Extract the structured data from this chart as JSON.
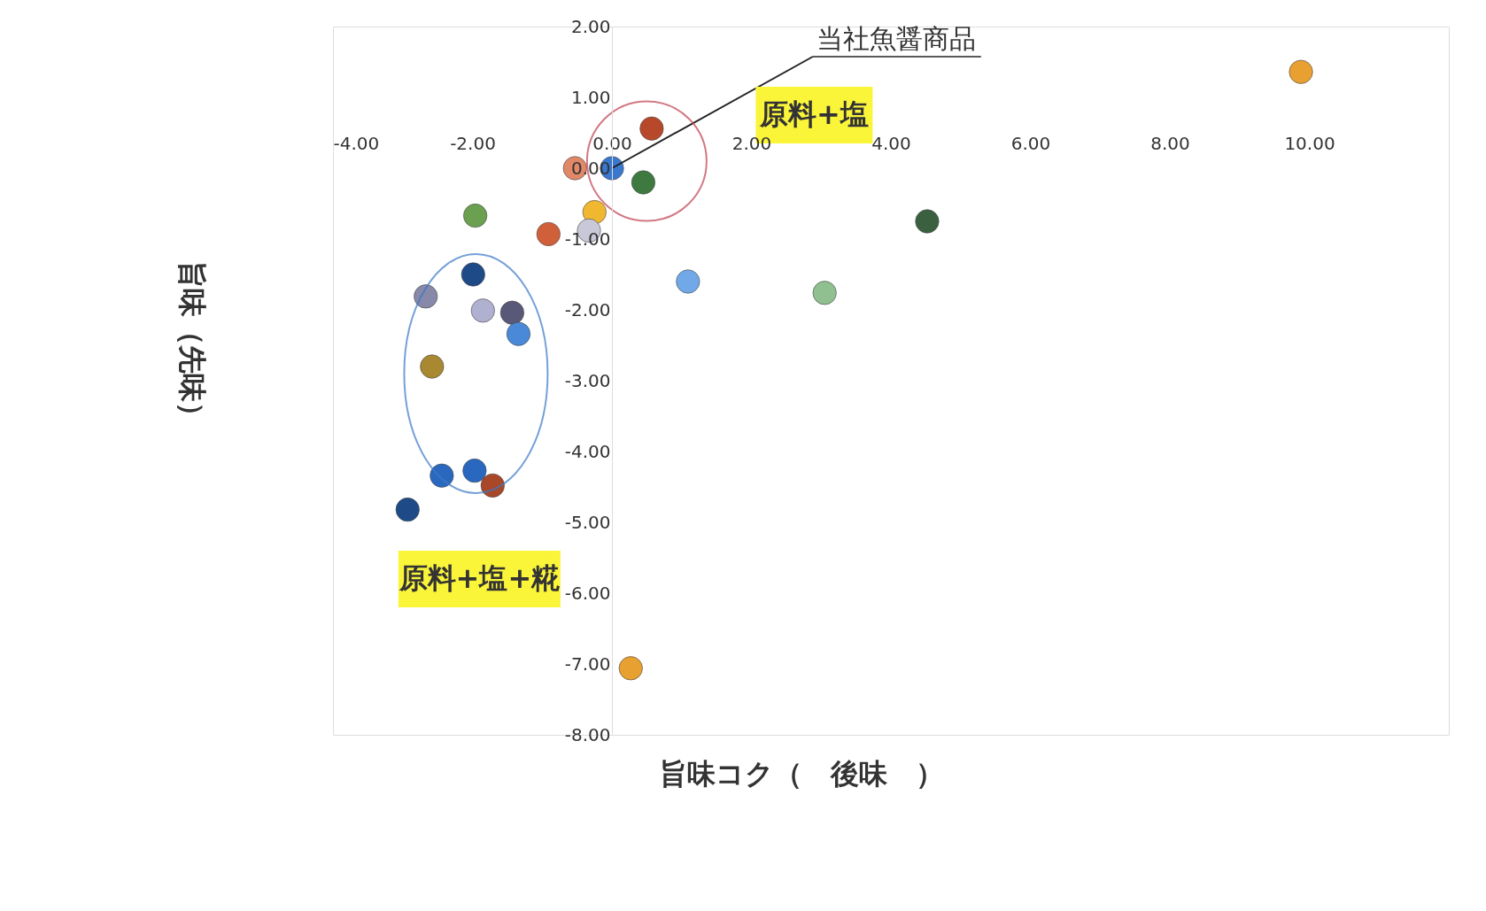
{
  "chart_data": {
    "type": "scatter",
    "xlabel": "旨味コク（　後味　）",
    "ylabel": "旨味（先味）",
    "x": [
      9.88,
      0.57,
      0.0,
      -0.53,
      0.45,
      -0.25,
      -0.33,
      -0.91,
      -1.96,
      4.52,
      1.09,
      3.05,
      -1.99,
      -2.67,
      -1.85,
      -1.43,
      -1.34,
      -2.58,
      -2.44,
      -1.97,
      -1.71,
      -2.93,
      0.27
    ],
    "values": [
      1.36,
      0.56,
      0.0,
      0.0,
      -0.2,
      -0.62,
      -0.88,
      -0.93,
      -0.67,
      -0.75,
      -1.6,
      -1.76,
      -1.5,
      -1.81,
      -2.01,
      -2.04,
      -2.34,
      -2.8,
      -4.34,
      -4.27,
      -4.48,
      -4.82,
      -7.06
    ],
    "colors": [
      "#e8a030",
      "#b8482a",
      "#3a78d0",
      "#e08868",
      "#3e7a40",
      "#f0b830",
      "#c8c8d8",
      "#d0603a",
      "#6aa050",
      "#3a6040",
      "#70a8e8",
      "#90c090",
      "#1e4a88",
      "#8888a8",
      "#b0b0d0",
      "#585878",
      "#4a88d8",
      "#a88830",
      "#2a68c0",
      "#2a68c0",
      "#a84828",
      "#1e4a88",
      "#e8a030"
    ],
    "xlim": [
      -4,
      12
    ],
    "ylim": [
      -8,
      2
    ],
    "xticks": [
      {
        "value": -4,
        "label": "-4.00"
      },
      {
        "value": -2,
        "label": "-2.00"
      },
      {
        "value": 0,
        "label": "0.00"
      },
      {
        "value": 2,
        "label": "2.00"
      },
      {
        "value": 4,
        "label": "4.00"
      },
      {
        "value": 6,
        "label": "6.00"
      },
      {
        "value": 8,
        "label": "8.00"
      },
      {
        "value": 10,
        "label": "10.00"
      }
    ],
    "yticks": [
      {
        "value": -8,
        "label": "-8.00"
      },
      {
        "value": -7,
        "label": "-7.00"
      },
      {
        "value": -6,
        "label": "-6.00"
      },
      {
        "value": -5,
        "label": "-5.00"
      },
      {
        "value": -4,
        "label": "-4.00"
      },
      {
        "value": -3,
        "label": "-3.00"
      },
      {
        "value": -2,
        "label": "-2.00"
      },
      {
        "value": -1,
        "label": "-1.00"
      },
      {
        "value": 0,
        "label": "0.00"
      },
      {
        "value": 1,
        "label": "1.00"
      },
      {
        "value": 2,
        "label": "2.00"
      }
    ],
    "grid": false,
    "annotations": [
      "原料+塩",
      "原料+塩+糀",
      {
        "text": "当社魚醤商品",
        "x": 0.0,
        "y": 0.0
      }
    ]
  }
}
